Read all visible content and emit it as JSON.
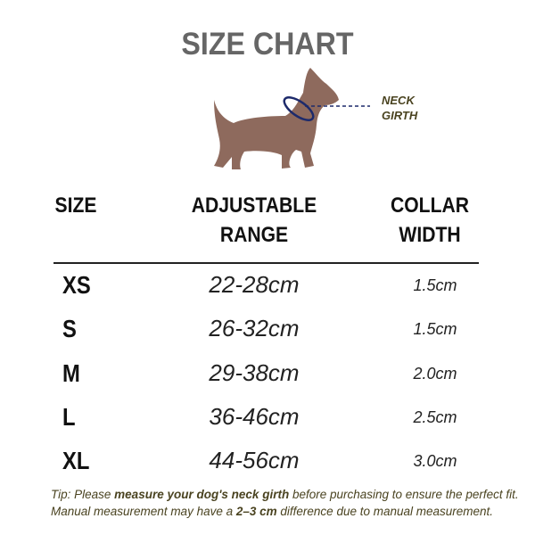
{
  "title": "SIZE CHART",
  "illustration": {
    "neck_label_line1": "NECK",
    "neck_label_line2": "GIRTH",
    "dog_color": "#8e6a5d",
    "collar_color": "#1d2a6b"
  },
  "table": {
    "headers": {
      "size": "SIZE",
      "range_line1": "ADJUSTABLE",
      "range_line2": "RANGE",
      "width_line1": "COLLAR",
      "width_line2": "WIDTH"
    },
    "rows": [
      {
        "size": "XS",
        "range": "22-28cm",
        "width": "1.5cm"
      },
      {
        "size": "S",
        "range": "26-32cm",
        "width": "1.5cm"
      },
      {
        "size": "M",
        "range": "29-38cm",
        "width": "2.0cm"
      },
      {
        "size": "L",
        "range": "36-46cm",
        "width": "2.5cm"
      },
      {
        "size": "XL",
        "range": "44-56cm",
        "width": "3.0cm"
      }
    ]
  },
  "tip": {
    "line1_a": "Tip: Please ",
    "line1_bold": "measure your dog's neck girth",
    "line1_b": " before purchasing to ensure the perfect fit.",
    "line2_a": "Manual measurement may have a ",
    "line2_bold": "2–3 cm",
    "line2_b": " difference due to manual measurement."
  }
}
